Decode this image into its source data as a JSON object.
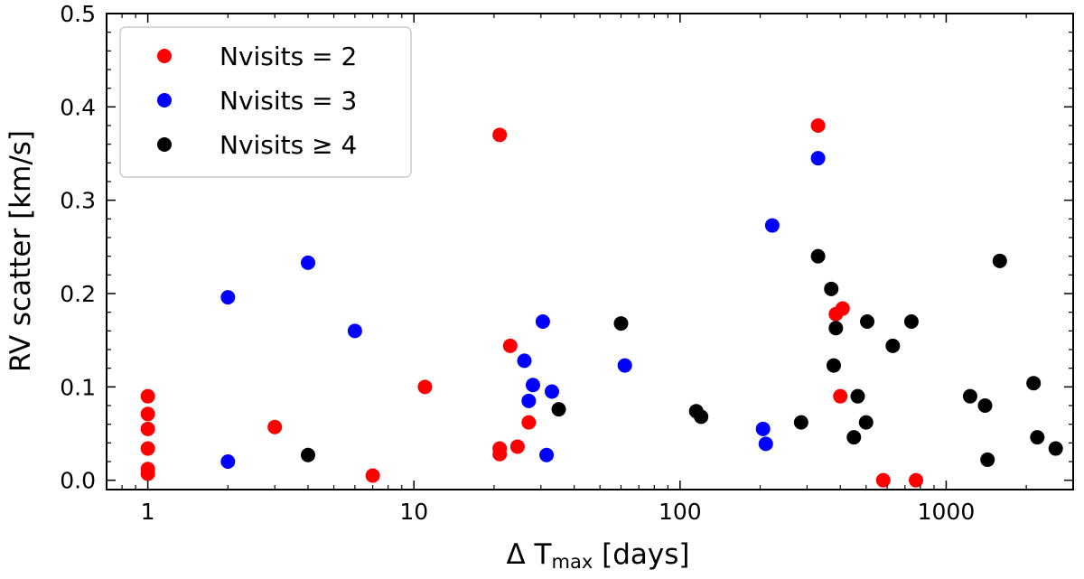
{
  "chart_data": {
    "type": "scatter",
    "xlabel": {
      "prefix": "Δ T",
      "sub": "max",
      "suffix": " [days]"
    },
    "ylabel": "RV scatter [km/s]",
    "xscale": "log",
    "xlim": [
      0.7,
      3000
    ],
    "ylim": [
      -0.01,
      0.5
    ],
    "xticks": [
      1,
      10,
      100,
      1000
    ],
    "xtick_labels": [
      "1",
      "10",
      "100",
      "1000"
    ],
    "yticks": [
      0.0,
      0.1,
      0.2,
      0.3,
      0.4,
      0.5
    ],
    "ytick_labels": [
      "0.0",
      "0.1",
      "0.2",
      "0.3",
      "0.4",
      "0.5"
    ],
    "legend_position": "top-left",
    "series": [
      {
        "name": "Nvisits = 2",
        "color": "#ff0000",
        "points": [
          [
            1,
            0.09
          ],
          [
            1,
            0.071
          ],
          [
            1,
            0.055
          ],
          [
            1,
            0.034
          ],
          [
            1,
            0.012
          ],
          [
            1,
            0.007
          ],
          [
            3,
            0.057
          ],
          [
            7,
            0.005
          ],
          [
            11,
            0.1
          ],
          [
            21,
            0.37
          ],
          [
            21,
            0.034
          ],
          [
            21,
            0.028
          ],
          [
            23,
            0.144
          ],
          [
            24.5,
            0.036
          ],
          [
            27,
            0.062
          ],
          [
            330,
            0.38
          ],
          [
            385,
            0.178
          ],
          [
            408,
            0.184
          ],
          [
            400,
            0.09
          ],
          [
            580,
            0.0
          ],
          [
            770,
            0.0
          ]
        ]
      },
      {
        "name": "Nvisits = 3",
        "color": "#0000ff",
        "points": [
          [
            2,
            0.196
          ],
          [
            2,
            0.02
          ],
          [
            4,
            0.233
          ],
          [
            6,
            0.16
          ],
          [
            26,
            0.128
          ],
          [
            27,
            0.085
          ],
          [
            28,
            0.102
          ],
          [
            30.5,
            0.17
          ],
          [
            31.5,
            0.027
          ],
          [
            33,
            0.095
          ],
          [
            62,
            0.123
          ],
          [
            205,
            0.055
          ],
          [
            210,
            0.039
          ],
          [
            222,
            0.273
          ],
          [
            330,
            0.345
          ]
        ]
      },
      {
        "name": "Nvisits ≥ 4",
        "color": "#000000",
        "points": [
          [
            4,
            0.027
          ],
          [
            35,
            0.076
          ],
          [
            60,
            0.168
          ],
          [
            115,
            0.074
          ],
          [
            120,
            0.068
          ],
          [
            285,
            0.062
          ],
          [
            330,
            0.24
          ],
          [
            370,
            0.205
          ],
          [
            378,
            0.123
          ],
          [
            385,
            0.163
          ],
          [
            450,
            0.046
          ],
          [
            465,
            0.09
          ],
          [
            500,
            0.062
          ],
          [
            505,
            0.17
          ],
          [
            630,
            0.144
          ],
          [
            740,
            0.17
          ],
          [
            1230,
            0.09
          ],
          [
            1400,
            0.08
          ],
          [
            1430,
            0.022
          ],
          [
            1590,
            0.235
          ],
          [
            2130,
            0.104
          ],
          [
            2200,
            0.046
          ],
          [
            2580,
            0.034
          ]
        ]
      }
    ]
  }
}
